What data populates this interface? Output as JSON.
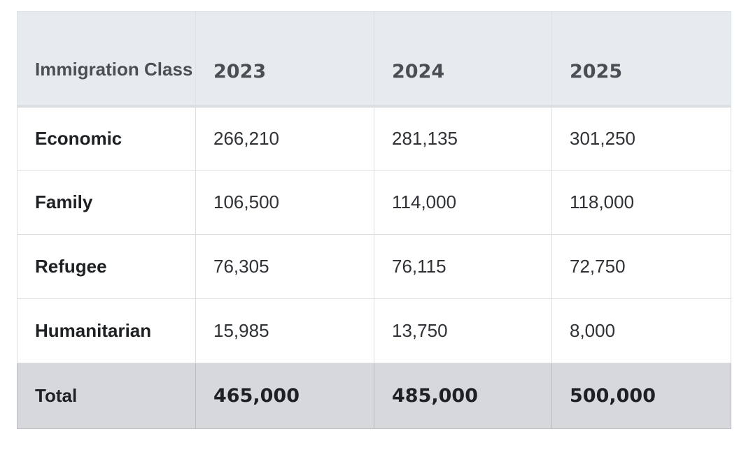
{
  "table": {
    "headers": [
      "Immigration Class",
      "2023",
      "2024",
      "2025"
    ],
    "rows": [
      {
        "label": "Economic",
        "values": [
          "266,210",
          "281,135",
          "301,250"
        ]
      },
      {
        "label": "Family",
        "values": [
          "106,500",
          "114,000",
          "118,000"
        ]
      },
      {
        "label": "Refugee",
        "values": [
          "76,305",
          "76,115",
          "72,750"
        ]
      },
      {
        "label": "Humanitarian",
        "values": [
          "15,985",
          "13,750",
          "8,000"
        ]
      }
    ],
    "total": {
      "label": "Total",
      "values": [
        "465,000",
        "485,000",
        "500,000"
      ]
    }
  }
}
